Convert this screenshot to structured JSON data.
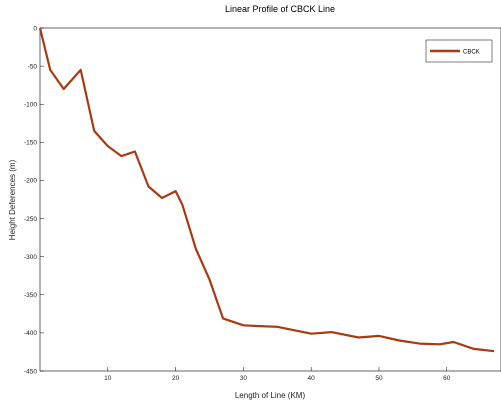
{
  "chart_data": {
    "type": "line",
    "title": "Linear Profile of CBCK Line",
    "xlabel": "Length of Line (KM)",
    "ylabel": "Height Deferences (m)",
    "xlim": [
      0,
      68
    ],
    "ylim": [
      -450,
      0
    ],
    "xticks": [
      10,
      20,
      30,
      40,
      50,
      60
    ],
    "yticks": [
      0,
      -50,
      -100,
      -150,
      -200,
      -250,
      -300,
      -350,
      -400,
      -450
    ],
    "grid": false,
    "legend_position": "top-right",
    "series": [
      {
        "name": "CBCK",
        "color": "#a83a14",
        "x": [
          0,
          1.5,
          3.5,
          6,
          8,
          10,
          12,
          14,
          16,
          18,
          20,
          21,
          23,
          25,
          27,
          30,
          32,
          35,
          40,
          43,
          47,
          50,
          53,
          56,
          59,
          61,
          64,
          67
        ],
        "y": [
          0,
          -55,
          -80,
          -55,
          -135,
          -155,
          -168,
          -162,
          -208,
          -223,
          -214,
          -232,
          -290,
          -330,
          -381,
          -390,
          -391,
          -392,
          -401,
          -399,
          -406,
          -404,
          -410,
          -414,
          -415,
          -412,
          -421,
          -424
        ]
      }
    ]
  }
}
